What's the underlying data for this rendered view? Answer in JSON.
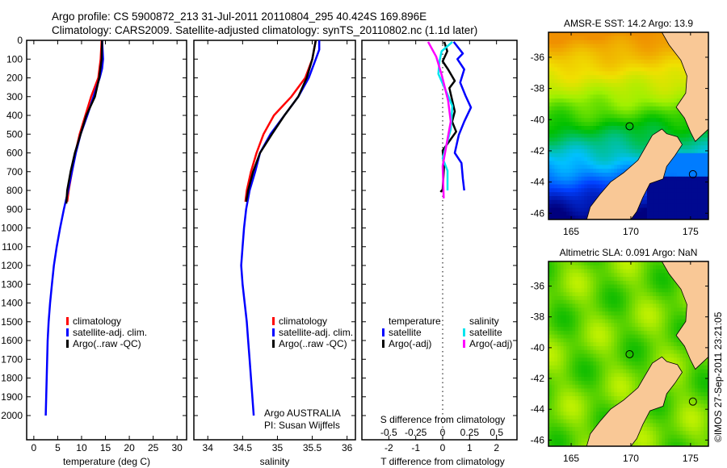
{
  "header": {
    "line1": "Argo profile: CS 5900872_213 31-Jul-2011 20110804_295 40.424S 169.896E",
    "line2": "Climatology: CARS2009. Satellite-adjusted climatology: synTS_20110802.nc (1.1d later)"
  },
  "credit": {
    "line1": "Argo AUSTRALIA",
    "line2": "PI: Susan Wijffels"
  },
  "watermark": "©IMOS 27-Sep-2011 23:21:05",
  "colors": {
    "climatology": "#ff0000",
    "satellite": "#0000ff",
    "argo": "#000000",
    "sal_satellite": "#00e5ee",
    "sal_argo": "#ff00ff"
  },
  "chart_data": [
    {
      "type": "line",
      "name": "temperature-profile",
      "xlabel": "temperature (deg C)",
      "ylabel": "",
      "xlim": [
        -1.5,
        32
      ],
      "ylim": [
        2129,
        0
      ],
      "xticks": [
        0,
        5,
        10,
        15,
        20,
        25,
        30
      ],
      "yticks": [
        0,
        100,
        200,
        300,
        400,
        500,
        600,
        700,
        800,
        900,
        1000,
        1100,
        1200,
        1300,
        1400,
        1500,
        1600,
        1700,
        1800,
        1900,
        2000
      ],
      "legend": [
        "climatology",
        "satellite-adj. clim.",
        "Argo(..raw -QC)"
      ],
      "series": [
        {
          "name": "climatology",
          "color": "#ff0000",
          "points": [
            [
              14.2,
              0
            ],
            [
              14,
              100
            ],
            [
              13.5,
              200
            ],
            [
              12,
              300
            ],
            [
              10.8,
              400
            ],
            [
              9.6,
              500
            ],
            [
              8.7,
              600
            ],
            [
              8,
              700
            ],
            [
              7.3,
              800
            ],
            [
              7,
              860
            ]
          ]
        },
        {
          "name": "satellite-adj. clim.",
          "color": "#0000ff",
          "points": [
            [
              14.3,
              0
            ],
            [
              14.5,
              100
            ],
            [
              14.3,
              150
            ],
            [
              13.8,
              200
            ],
            [
              12.5,
              300
            ],
            [
              11.2,
              400
            ],
            [
              9.8,
              500
            ],
            [
              8.8,
              600
            ],
            [
              8,
              700
            ],
            [
              7.2,
              800
            ],
            [
              6.3,
              900
            ],
            [
              5.5,
              1000
            ],
            [
              4.8,
              1100
            ],
            [
              4.2,
              1200
            ],
            [
              3.8,
              1300
            ],
            [
              3.4,
              1400
            ],
            [
              3.1,
              1500
            ],
            [
              2.9,
              1600
            ],
            [
              2.8,
              1700
            ],
            [
              2.7,
              1800
            ],
            [
              2.6,
              1900
            ],
            [
              2.5,
              2000
            ]
          ]
        },
        {
          "name": "Argo(..raw -QC)",
          "color": "#000000",
          "points": [
            [
              14.3,
              0
            ],
            [
              14.2,
              100
            ],
            [
              13.7,
              200
            ],
            [
              12.8,
              300
            ],
            [
              11,
              400
            ],
            [
              9.8,
              500
            ],
            [
              8.6,
              600
            ],
            [
              7.7,
              700
            ],
            [
              7,
              800
            ],
            [
              6.8,
              870
            ]
          ]
        }
      ]
    },
    {
      "type": "line",
      "name": "salinity-profile",
      "xlabel": "salinity",
      "xlim": [
        33.8,
        36.12
      ],
      "ylim": [
        2129,
        0
      ],
      "xticks": [
        "34",
        "34.5",
        "35",
        "35.5",
        "36"
      ],
      "legend": [
        "climatology",
        "satellite-adj. clim.",
        "Argo(..raw -QC)"
      ],
      "series": [
        {
          "name": "climatology",
          "color": "#ff0000",
          "points": [
            [
              35.55,
              0
            ],
            [
              35.5,
              100
            ],
            [
              35.4,
              200
            ],
            [
              35.2,
              300
            ],
            [
              34.95,
              400
            ],
            [
              34.8,
              500
            ],
            [
              34.7,
              600
            ],
            [
              34.62,
              700
            ],
            [
              34.56,
              800
            ],
            [
              34.54,
              860
            ]
          ]
        },
        {
          "name": "satellite-adj. clim.",
          "color": "#0000ff",
          "points": [
            [
              35.6,
              0
            ],
            [
              35.6,
              50
            ],
            [
              35.55,
              100
            ],
            [
              35.45,
              200
            ],
            [
              35.3,
              300
            ],
            [
              35.1,
              400
            ],
            [
              34.9,
              500
            ],
            [
              34.75,
              600
            ],
            [
              34.68,
              700
            ],
            [
              34.6,
              800
            ],
            [
              34.55,
              900
            ],
            [
              34.52,
              1000
            ],
            [
              34.5,
              1100
            ],
            [
              34.48,
              1200
            ],
            [
              34.5,
              1300
            ],
            [
              34.53,
              1400
            ],
            [
              34.56,
              1500
            ],
            [
              34.58,
              1600
            ],
            [
              34.6,
              1700
            ],
            [
              34.62,
              1800
            ],
            [
              34.64,
              1900
            ],
            [
              34.66,
              2000
            ]
          ]
        },
        {
          "name": "Argo(..raw -QC)",
          "color": "#000000",
          "points": [
            [
              35.55,
              0
            ],
            [
              35.5,
              100
            ],
            [
              35.42,
              200
            ],
            [
              35.3,
              300
            ],
            [
              35.1,
              400
            ],
            [
              34.92,
              500
            ],
            [
              34.75,
              600
            ],
            [
              34.65,
              700
            ],
            [
              34.58,
              800
            ],
            [
              34.55,
              860
            ]
          ]
        }
      ]
    },
    {
      "type": "line",
      "name": "difference-profile",
      "xlabel": "T difference from climatology",
      "xlabel_top": "S difference from climatology",
      "xlim": [
        -3,
        2.76
      ],
      "ylim": [
        2129,
        0
      ],
      "xticks": [
        "-2",
        "-1",
        "0",
        "1",
        "2"
      ],
      "xticks_s": [
        "-0.5",
        "-0.25",
        "0",
        "0.25",
        "0.5"
      ],
      "legend_headers": [
        "temperature",
        "salinity"
      ],
      "legend": [
        "satellite",
        "Argo(-adj)",
        "satellite",
        "Argo(-adj)"
      ],
      "series": [
        {
          "name": "temperature satellite",
          "unit": "T",
          "color": "#0000ff",
          "points": [
            [
              0.41,
              8
            ],
            [
              0.75,
              70
            ],
            [
              0.55,
              100
            ],
            [
              0.8,
              155
            ],
            [
              0.65,
              225
            ],
            [
              0.85,
              295
            ],
            [
              1.05,
              358
            ],
            [
              0.8,
              433
            ],
            [
              0.6,
              504
            ],
            [
              0.45,
              600
            ],
            [
              0.7,
              654
            ],
            [
              0.75,
              737
            ],
            [
              0.8,
              800
            ]
          ]
        },
        {
          "name": "temperature Argo(-adj)",
          "unit": "T",
          "color": "#000000",
          "points": [
            [
              0.06,
              8
            ],
            [
              0.17,
              58
            ],
            [
              0.0,
              112
            ],
            [
              0.2,
              155
            ],
            [
              0.45,
              216
            ],
            [
              0.25,
              254
            ],
            [
              0.45,
              379
            ],
            [
              0.35,
              433
            ],
            [
              0.5,
              487
            ],
            [
              0.0,
              587
            ],
            [
              0.05,
              670
            ],
            [
              0.0,
              795
            ],
            [
              -0.08,
              808
            ]
          ]
        },
        {
          "name": "salinity satellite",
          "unit": "S",
          "color": "#00e5ee",
          "points": [
            [
              0.09,
              8
            ],
            [
              -0.01,
              58
            ],
            [
              -0.03,
              112
            ],
            [
              -0.04,
              179
            ],
            [
              0.05,
              295
            ],
            [
              0.09,
              350
            ],
            [
              0.075,
              475
            ],
            [
              0.035,
              558
            ],
            [
              0.0,
              629
            ],
            [
              0.045,
              695
            ],
            [
              0.045,
              800
            ]
          ]
        },
        {
          "name": "salinity Argo(-adj)",
          "unit": "S",
          "color": "#ff00ff",
          "points": [
            [
              -0.135,
              8
            ],
            [
              -0.06,
              87
            ],
            [
              -0.01,
              183
            ],
            [
              0.05,
              320
            ],
            [
              0.075,
              433
            ],
            [
              0.035,
              558
            ],
            [
              0.0,
              670
            ],
            [
              0.01,
              842
            ]
          ]
        }
      ]
    },
    {
      "type": "heatmap",
      "name": "sst-map",
      "title": "AMSR-E SST: 14.2 Argo: 13.9",
      "xlim": [
        163.1,
        176.5
      ],
      "ylim": [
        -46.4,
        -34.4
      ],
      "xticks": [
        "165",
        "170",
        "175"
      ],
      "yticks": [
        "-36",
        "-38",
        "-40",
        "-42",
        "-44",
        "-46"
      ],
      "markers": [
        [
          169.896,
          -40.424
        ],
        [
          175.2,
          -43.5
        ]
      ]
    },
    {
      "type": "heatmap",
      "name": "sla-map",
      "title": "Altimetric SLA: 0.091 Argo: NaN",
      "xlim": [
        163.1,
        176.5
      ],
      "ylim": [
        -46.4,
        -34.4
      ],
      "xticks": [
        "165",
        "170",
        "175"
      ],
      "yticks": [
        "-36",
        "-38",
        "-40",
        "-42",
        "-44",
        "-46"
      ],
      "markers": [
        [
          169.896,
          -40.424
        ],
        [
          175.2,
          -43.5
        ]
      ]
    }
  ]
}
